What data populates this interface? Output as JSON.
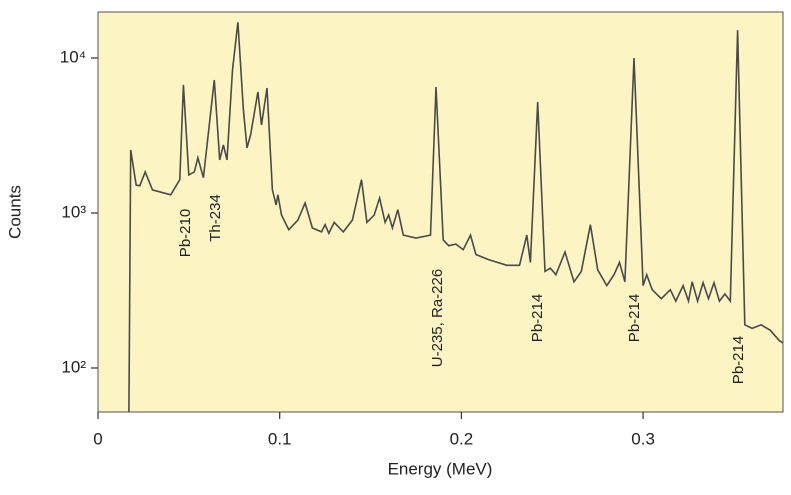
{
  "chart_data": {
    "type": "line",
    "x_label": "Energy (MeV)",
    "y_label": "Counts",
    "log_y": true,
    "color": "#4a4a4a",
    "background": "#fcf4c2",
    "xlim": [
      0,
      0.377
    ],
    "ylim": [
      52,
      19800
    ],
    "xticks": [
      0,
      0.1,
      0.2,
      0.3
    ],
    "yticks": [
      {
        "value": 100,
        "label": "10²"
      },
      {
        "value": 1000,
        "label": "10³"
      },
      {
        "value": 10000,
        "label": "10⁴"
      }
    ],
    "annotations": [
      "Pb-210",
      "Th-234",
      "U-235, Ra-226",
      "Pb-214",
      "Pb-214",
      "Pb-214"
    ],
    "x": [
      0.017,
      0.018,
      0.021,
      0.023,
      0.026,
      0.03,
      0.04,
      0.045,
      0.047,
      0.05,
      0.053,
      0.055,
      0.058,
      0.064,
      0.067,
      0.069,
      0.071,
      0.074,
      0.077,
      0.08,
      0.082,
      0.084,
      0.088,
      0.09,
      0.093,
      0.096,
      0.098,
      0.099,
      0.101,
      0.105,
      0.11,
      0.114,
      0.118,
      0.123,
      0.125,
      0.127,
      0.13,
      0.135,
      0.14,
      0.145,
      0.148,
      0.152,
      0.155,
      0.158,
      0.16,
      0.162,
      0.165,
      0.168,
      0.175,
      0.183,
      0.186,
      0.19,
      0.193,
      0.197,
      0.201,
      0.205,
      0.208,
      0.215,
      0.225,
      0.232,
      0.236,
      0.238,
      0.242,
      0.246,
      0.249,
      0.252,
      0.257,
      0.262,
      0.266,
      0.271,
      0.275,
      0.28,
      0.284,
      0.287,
      0.29,
      0.295,
      0.3,
      0.302,
      0.305,
      0.31,
      0.315,
      0.318,
      0.322,
      0.325,
      0.327,
      0.33,
      0.333,
      0.336,
      0.339,
      0.342,
      0.345,
      0.348,
      0.352,
      0.356,
      0.36,
      0.365,
      0.37,
      0.375,
      0.377
    ],
    "values": [
      52,
      2550,
      1510,
      1500,
      1840,
      1410,
      1310,
      1640,
      6700,
      1760,
      1840,
      2270,
      1690,
      7210,
      2200,
      2750,
      2200,
      8370,
      17000,
      4620,
      2630,
      3190,
      6030,
      3700,
      6400,
      1410,
      1130,
      1310,
      970,
      780,
      900,
      1160,
      800,
      755,
      840,
      740,
      870,
      755,
      900,
      1640,
      870,
      970,
      1250,
      870,
      970,
      800,
      1050,
      720,
      690,
      720,
      6500,
      670,
      615,
      630,
      580,
      720,
      540,
      500,
      460,
      460,
      720,
      480,
      5200,
      420,
      440,
      400,
      560,
      360,
      420,
      840,
      430,
      340,
      400,
      480,
      360,
      10000,
      340,
      400,
      320,
      280,
      320,
      270,
      340,
      270,
      360,
      270,
      355,
      280,
      355,
      270,
      300,
      270,
      15100,
      190,
      180,
      190,
      175,
      150,
      145
    ]
  }
}
